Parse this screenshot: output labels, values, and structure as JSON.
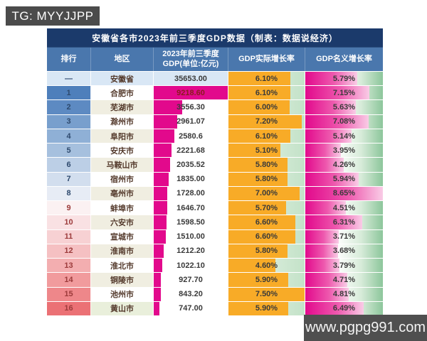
{
  "badges": {
    "tg": "TG: MYYJJPP",
    "site": "www.pgpg991.com"
  },
  "chart_data": {
    "type": "table",
    "title": "安徽省各市2023年前三季度GDP数据（制表：数据说经济）",
    "columns": [
      "排行",
      "地区",
      "2023年前三季度GDP(单位:亿元)",
      "GDP实际增长率",
      "GDP名义增长率"
    ],
    "summary": {
      "rank": "—",
      "region": "安徽省",
      "gdp": "35653.00",
      "real": "6.10%",
      "real_value": 6.1,
      "nominal": "5.79%",
      "nominal_value": 5.79
    },
    "rows": [
      {
        "rank": "1",
        "region": "合肥市",
        "gdp": "9218.60",
        "gdp_value": 9218.6,
        "real": "6.10%",
        "real_value": 6.1,
        "nominal": "7.15%",
        "nominal_value": 7.15
      },
      {
        "rank": "2",
        "region": "芜湖市",
        "gdp": "3556.30",
        "gdp_value": 3556.3,
        "real": "6.00%",
        "real_value": 6.0,
        "nominal": "5.63%",
        "nominal_value": 5.63
      },
      {
        "rank": "3",
        "region": "滁州市",
        "gdp": "2961.07",
        "gdp_value": 2961.07,
        "real": "7.20%",
        "real_value": 7.2,
        "nominal": "7.08%",
        "nominal_value": 7.08
      },
      {
        "rank": "4",
        "region": "阜阳市",
        "gdp": "2580.6",
        "gdp_value": 2580.6,
        "real": "6.10%",
        "real_value": 6.1,
        "nominal": "5.14%",
        "nominal_value": 5.14
      },
      {
        "rank": "5",
        "region": "安庆市",
        "gdp": "2221.68",
        "gdp_value": 2221.68,
        "real": "5.10%",
        "real_value": 5.1,
        "nominal": "3.95%",
        "nominal_value": 3.95
      },
      {
        "rank": "6",
        "region": "马鞍山市",
        "gdp": "2035.52",
        "gdp_value": 2035.52,
        "real": "5.80%",
        "real_value": 5.8,
        "nominal": "4.26%",
        "nominal_value": 4.26
      },
      {
        "rank": "7",
        "region": "宿州市",
        "gdp": "1835.00",
        "gdp_value": 1835.0,
        "real": "5.80%",
        "real_value": 5.8,
        "nominal": "5.94%",
        "nominal_value": 5.94
      },
      {
        "rank": "8",
        "region": "亳州市",
        "gdp": "1728.00",
        "gdp_value": 1728.0,
        "real": "7.00%",
        "real_value": 7.0,
        "nominal": "8.65%",
        "nominal_value": 8.65
      },
      {
        "rank": "9",
        "region": "蚌埠市",
        "gdp": "1646.70",
        "gdp_value": 1646.7,
        "real": "5.70%",
        "real_value": 5.7,
        "nominal": "4.51%",
        "nominal_value": 4.51
      },
      {
        "rank": "10",
        "region": "六安市",
        "gdp": "1598.50",
        "gdp_value": 1598.5,
        "real": "6.60%",
        "real_value": 6.6,
        "nominal": "6.31%",
        "nominal_value": 6.31
      },
      {
        "rank": "11",
        "region": "宣城市",
        "gdp": "1510.00",
        "gdp_value": 1510.0,
        "real": "6.60%",
        "real_value": 6.6,
        "nominal": "3.71%",
        "nominal_value": 3.71
      },
      {
        "rank": "12",
        "region": "淮南市",
        "gdp": "1212.20",
        "gdp_value": 1212.2,
        "real": "5.80%",
        "real_value": 5.8,
        "nominal": "3.68%",
        "nominal_value": 3.68
      },
      {
        "rank": "13",
        "region": "淮北市",
        "gdp": "1022.10",
        "gdp_value": 1022.1,
        "real": "4.60%",
        "real_value": 4.6,
        "nominal": "3.79%",
        "nominal_value": 3.79
      },
      {
        "rank": "14",
        "region": "铜陵市",
        "gdp": "927.70",
        "gdp_value": 927.7,
        "real": "5.90%",
        "real_value": 5.9,
        "nominal": "4.71%",
        "nominal_value": 4.71
      },
      {
        "rank": "15",
        "region": "池州市",
        "gdp": "843.20",
        "gdp_value": 843.2,
        "real": "7.50%",
        "real_value": 7.5,
        "nominal": "4.81%",
        "nominal_value": 4.81
      },
      {
        "rank": "16",
        "region": "黄山市",
        "gdp": "747.00",
        "gdp_value": 747.0,
        "real": "5.90%",
        "real_value": 5.9,
        "nominal": "6.49%",
        "nominal_value": 6.49
      }
    ],
    "scales": {
      "gdp_max": 9218.6,
      "real_max": 7.5,
      "nominal_max": 8.65
    }
  },
  "colors": {
    "title_bg": "#1b3a6b",
    "header_bg": "#4a77ad",
    "summary_bg": "#d9e7f5",
    "gdp_bar": "#e2098c",
    "real_bar": "#f8ab27",
    "nominal_bar_start": "#e2098c",
    "nominal_bar_end": "#f9cce6",
    "region_text": "#53392b",
    "rank_text_blue": "#2e4a6e",
    "rank_text_red": "#9c3b3b",
    "gdp_text_on_bar": "#8a1c1c",
    "region_alt_bg": "#f0eee1",
    "region_last_bg": "#e9efdb",
    "rank_scale": [
      "#4e7fbb",
      "#5d8ac2",
      "#789fcd",
      "#8fb0d6",
      "#a6c0de",
      "#bccfe6",
      "#d2deee",
      "#e7ecf5",
      "#fbf1f2",
      "#f9e1e3",
      "#f7d1d3",
      "#f5c0c2",
      "#f3aeb0",
      "#f19b9d",
      "#ee878a",
      "#eb7175"
    ]
  }
}
